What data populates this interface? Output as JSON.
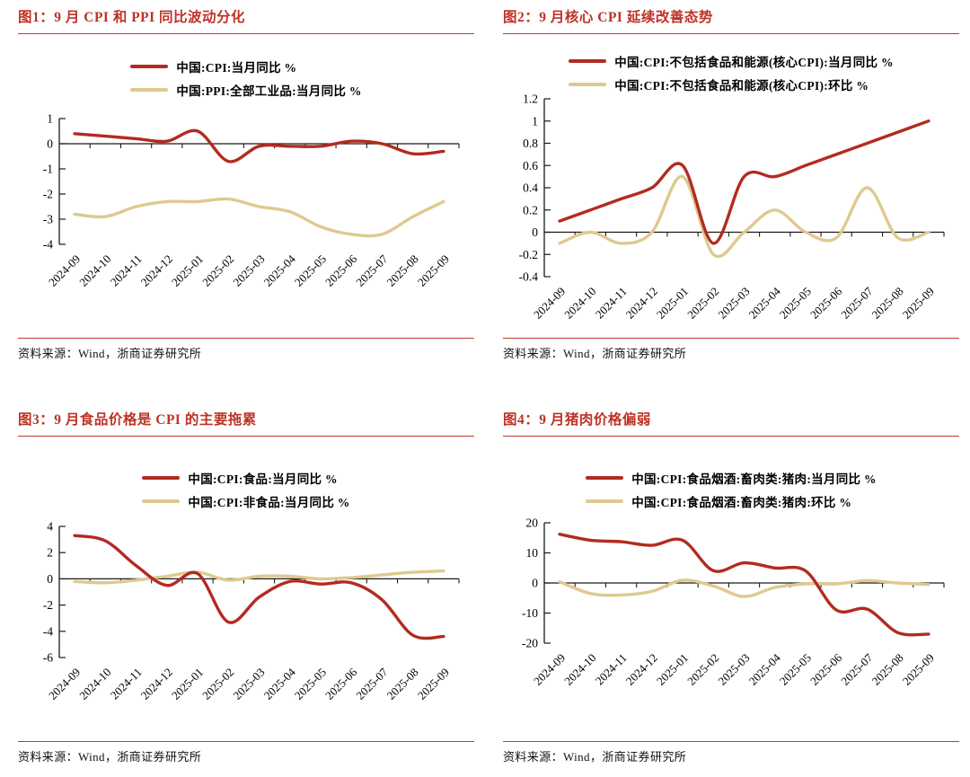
{
  "colors": {
    "accent_red": "#BE3226",
    "rule_red": "#C23B2B",
    "line_red": "#B22B20",
    "line_tan": "#DFC98F",
    "axis_black": "#1a1a1a"
  },
  "source_note": "资料来源：Wind，浙商证券研究所",
  "categories": [
    "2024-09",
    "2024-10",
    "2024-11",
    "2024-12",
    "2025-01",
    "2025-02",
    "2025-03",
    "2025-04",
    "2025-05",
    "2025-06",
    "2025-07",
    "2025-08",
    "2025-09"
  ],
  "chart_data": [
    {
      "type": "line",
      "title": "图1：9 月 CPI 和 PPI 同比波动分化",
      "categories": [
        "2024-09",
        "2024-10",
        "2024-11",
        "2024-12",
        "2025-01",
        "2025-02",
        "2025-03",
        "2025-04",
        "2025-05",
        "2025-06",
        "2025-07",
        "2025-08",
        "2025-09"
      ],
      "ylim": [
        -4,
        1
      ],
      "yticks": [
        "1",
        "0",
        "-1",
        "-2",
        "-3",
        "-4"
      ],
      "legend_position": "top-center",
      "grid": false,
      "series": [
        {
          "name": "中国:CPI:当月同比 %",
          "color": "#B22B20",
          "values": [
            0.4,
            0.3,
            0.2,
            0.1,
            0.5,
            -0.7,
            -0.1,
            -0.1,
            -0.1,
            0.1,
            0.0,
            -0.4,
            -0.3
          ]
        },
        {
          "name": "中国:PPI:全部工业品:当月同比 %",
          "color": "#DFC98F",
          "values": [
            -2.8,
            -2.9,
            -2.5,
            -2.3,
            -2.3,
            -2.2,
            -2.5,
            -2.7,
            -3.3,
            -3.6,
            -3.6,
            -2.9,
            -2.3
          ]
        }
      ],
      "source": "资料来源：Wind，浙商证券研究所"
    },
    {
      "type": "line",
      "title": "图2：9 月核心 CPI 延续改善态势",
      "categories": [
        "2024-09",
        "2024-10",
        "2024-11",
        "2024-12",
        "2025-01",
        "2025-02",
        "2025-03",
        "2025-04",
        "2025-05",
        "2025-06",
        "2025-07",
        "2025-08",
        "2025-09"
      ],
      "ylim": [
        -0.4,
        1.2
      ],
      "yticks": [
        "1.2",
        "1",
        "0.8",
        "0.6",
        "0.4",
        "0.2",
        "0",
        "-0.2",
        "-0.4"
      ],
      "legend_position": "top-center",
      "grid": false,
      "series": [
        {
          "name": "中国:CPI:不包括食品和能源(核心CPI):当月同比 %",
          "color": "#B22B20",
          "values": [
            0.1,
            0.2,
            0.3,
            0.4,
            0.6,
            -0.1,
            0.5,
            0.5,
            0.6,
            0.7,
            0.8,
            0.9,
            1.0
          ]
        },
        {
          "name": "中国:CPI:不包括食品和能源(核心CPI):环比 %",
          "color": "#DFC98F",
          "values": [
            -0.1,
            0.0,
            -0.1,
            0.0,
            0.5,
            -0.2,
            0.0,
            0.2,
            0.0,
            -0.05,
            0.4,
            -0.05,
            0.0
          ]
        }
      ],
      "source": "资料来源：Wind，浙商证券研究所"
    },
    {
      "type": "line",
      "title": "图3：9 月食品价格是 CPI 的主要拖累",
      "categories": [
        "2024-09",
        "2024-10",
        "2024-11",
        "2024-12",
        "2025-01",
        "2025-02",
        "2025-03",
        "2025-04",
        "2025-05",
        "2025-06",
        "2025-07",
        "2025-08",
        "2025-09"
      ],
      "ylim": [
        -6,
        4
      ],
      "yticks": [
        "4",
        "2",
        "0",
        "-2",
        "-4",
        "-6"
      ],
      "legend_position": "top-center",
      "grid": false,
      "series": [
        {
          "name": "中国:CPI:食品:当月同比 %",
          "color": "#B22B20",
          "values": [
            3.3,
            2.9,
            1.0,
            -0.5,
            0.4,
            -3.3,
            -1.4,
            -0.2,
            -0.4,
            -0.3,
            -1.6,
            -4.3,
            -4.4
          ]
        },
        {
          "name": "中国:CPI:非食品:当月同比 %",
          "color": "#DFC98F",
          "values": [
            -0.2,
            -0.3,
            -0.1,
            0.2,
            0.5,
            -0.1,
            0.2,
            0.2,
            0.0,
            0.1,
            0.3,
            0.5,
            0.6
          ]
        }
      ],
      "source": "资料来源：Wind，浙商证券研究所"
    },
    {
      "type": "line",
      "title": "图4：9 月猪肉价格偏弱",
      "categories": [
        "2024-09",
        "2024-10",
        "2024-11",
        "2024-12",
        "2025-01",
        "2025-02",
        "2025-03",
        "2025-04",
        "2025-05",
        "2025-06",
        "2025-07",
        "2025-08",
        "2025-09"
      ],
      "ylim": [
        -20,
        20
      ],
      "yticks": [
        "20",
        "10",
        "0",
        "-10",
        "-20"
      ],
      "legend_position": "top-center",
      "grid": false,
      "series": [
        {
          "name": "中国:CPI:食品烟酒:畜肉类:猪肉:当月同比 %",
          "color": "#B22B20",
          "values": [
            16.2,
            14.2,
            13.7,
            12.5,
            14.2,
            4.1,
            6.7,
            5.0,
            4.0,
            -9.0,
            -8.7,
            -16.5,
            -17.0
          ]
        },
        {
          "name": "中国:CPI:食品烟酒:畜肉类:猪肉:环比 %",
          "color": "#DFC98F",
          "values": [
            0.4,
            -3.5,
            -4.0,
            -2.8,
            0.9,
            -1.0,
            -4.5,
            -1.5,
            -0.3,
            -0.3,
            0.8,
            0.0,
            -0.5
          ]
        }
      ],
      "source": "资料来源：Wind，浙商证券研究所"
    }
  ]
}
